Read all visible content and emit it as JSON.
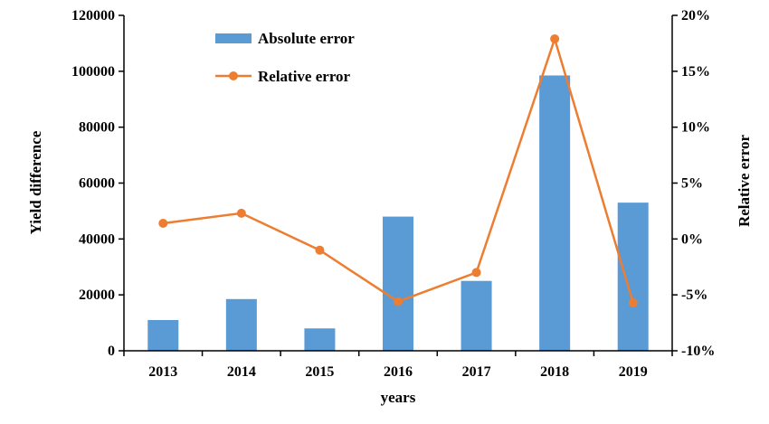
{
  "chart_data": {
    "type": "bar",
    "categories": [
      "2013",
      "2014",
      "2015",
      "2016",
      "2017",
      "2018",
      "2019"
    ],
    "series": [
      {
        "name": "Absolute error",
        "type": "bar",
        "axis": "left",
        "values": [
          11000,
          18500,
          8000,
          48000,
          25000,
          98500,
          53000
        ],
        "color": "#5b9bd5"
      },
      {
        "name": "Relative error",
        "type": "line",
        "axis": "right",
        "values": [
          1.4,
          2.3,
          -1.0,
          -5.6,
          -3.0,
          17.9,
          -5.7
        ],
        "color": "#ed7d31"
      }
    ],
    "xlabel": "years",
    "ylabel": "Yield difference",
    "y2label": "Relative error",
    "ylim": [
      0,
      120000
    ],
    "y2lim": [
      -10,
      20
    ],
    "yticks": [
      "0",
      "20000",
      "40000",
      "60000",
      "80000",
      "100000",
      "120000"
    ],
    "y2ticks": [
      "-10%",
      "-5%",
      "0%",
      "5%",
      "10%",
      "15%",
      "20%"
    ],
    "grid": false,
    "legend": "top-left"
  }
}
